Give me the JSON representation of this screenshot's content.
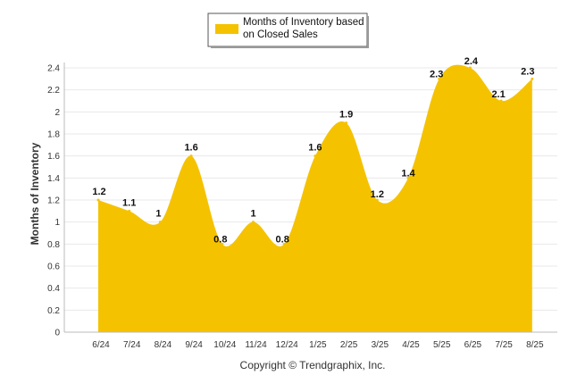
{
  "chart_data": {
    "type": "area",
    "categories": [
      "6/24",
      "7/24",
      "8/24",
      "9/24",
      "10/24",
      "11/24",
      "12/24",
      "1/25",
      "2/25",
      "3/25",
      "4/25",
      "5/25",
      "6/25",
      "7/25",
      "8/25"
    ],
    "series": [
      {
        "name": "Months of Inventory based on Closed Sales",
        "values": [
          1.2,
          1.1,
          1,
          1.6,
          0.8,
          1,
          0.8,
          1.6,
          1.9,
          1.2,
          1.4,
          2.3,
          2.4,
          2.1,
          2.3
        ],
        "data_labels": [
          "1.2",
          "1.1",
          "1",
          "1.6",
          "0.8",
          "1",
          "0.8",
          "1.6",
          "1.9",
          "1.2",
          "1.4",
          "2.3",
          "2.4",
          "2.1",
          "2.3"
        ],
        "color": "#F5C200"
      }
    ],
    "legend_lines": [
      "Months of Inventory based",
      "on Closed Sales"
    ],
    "ylabel": "Months of Inventory",
    "yticks": [
      "0",
      "0.2",
      "0.4",
      "0.6",
      "0.8",
      "1",
      "1.2",
      "1.4",
      "1.6",
      "1.8",
      "2",
      "2.2",
      "2.4"
    ],
    "ylim": [
      0,
      2.4
    ],
    "grid": true,
    "legend_position": "top"
  },
  "footer": {
    "copyright": "Copyright © Trendgraphix, Inc."
  },
  "colors": {
    "area": "#F5C200",
    "grid": "#e8e8e8",
    "axis": "#bbbbbb"
  }
}
